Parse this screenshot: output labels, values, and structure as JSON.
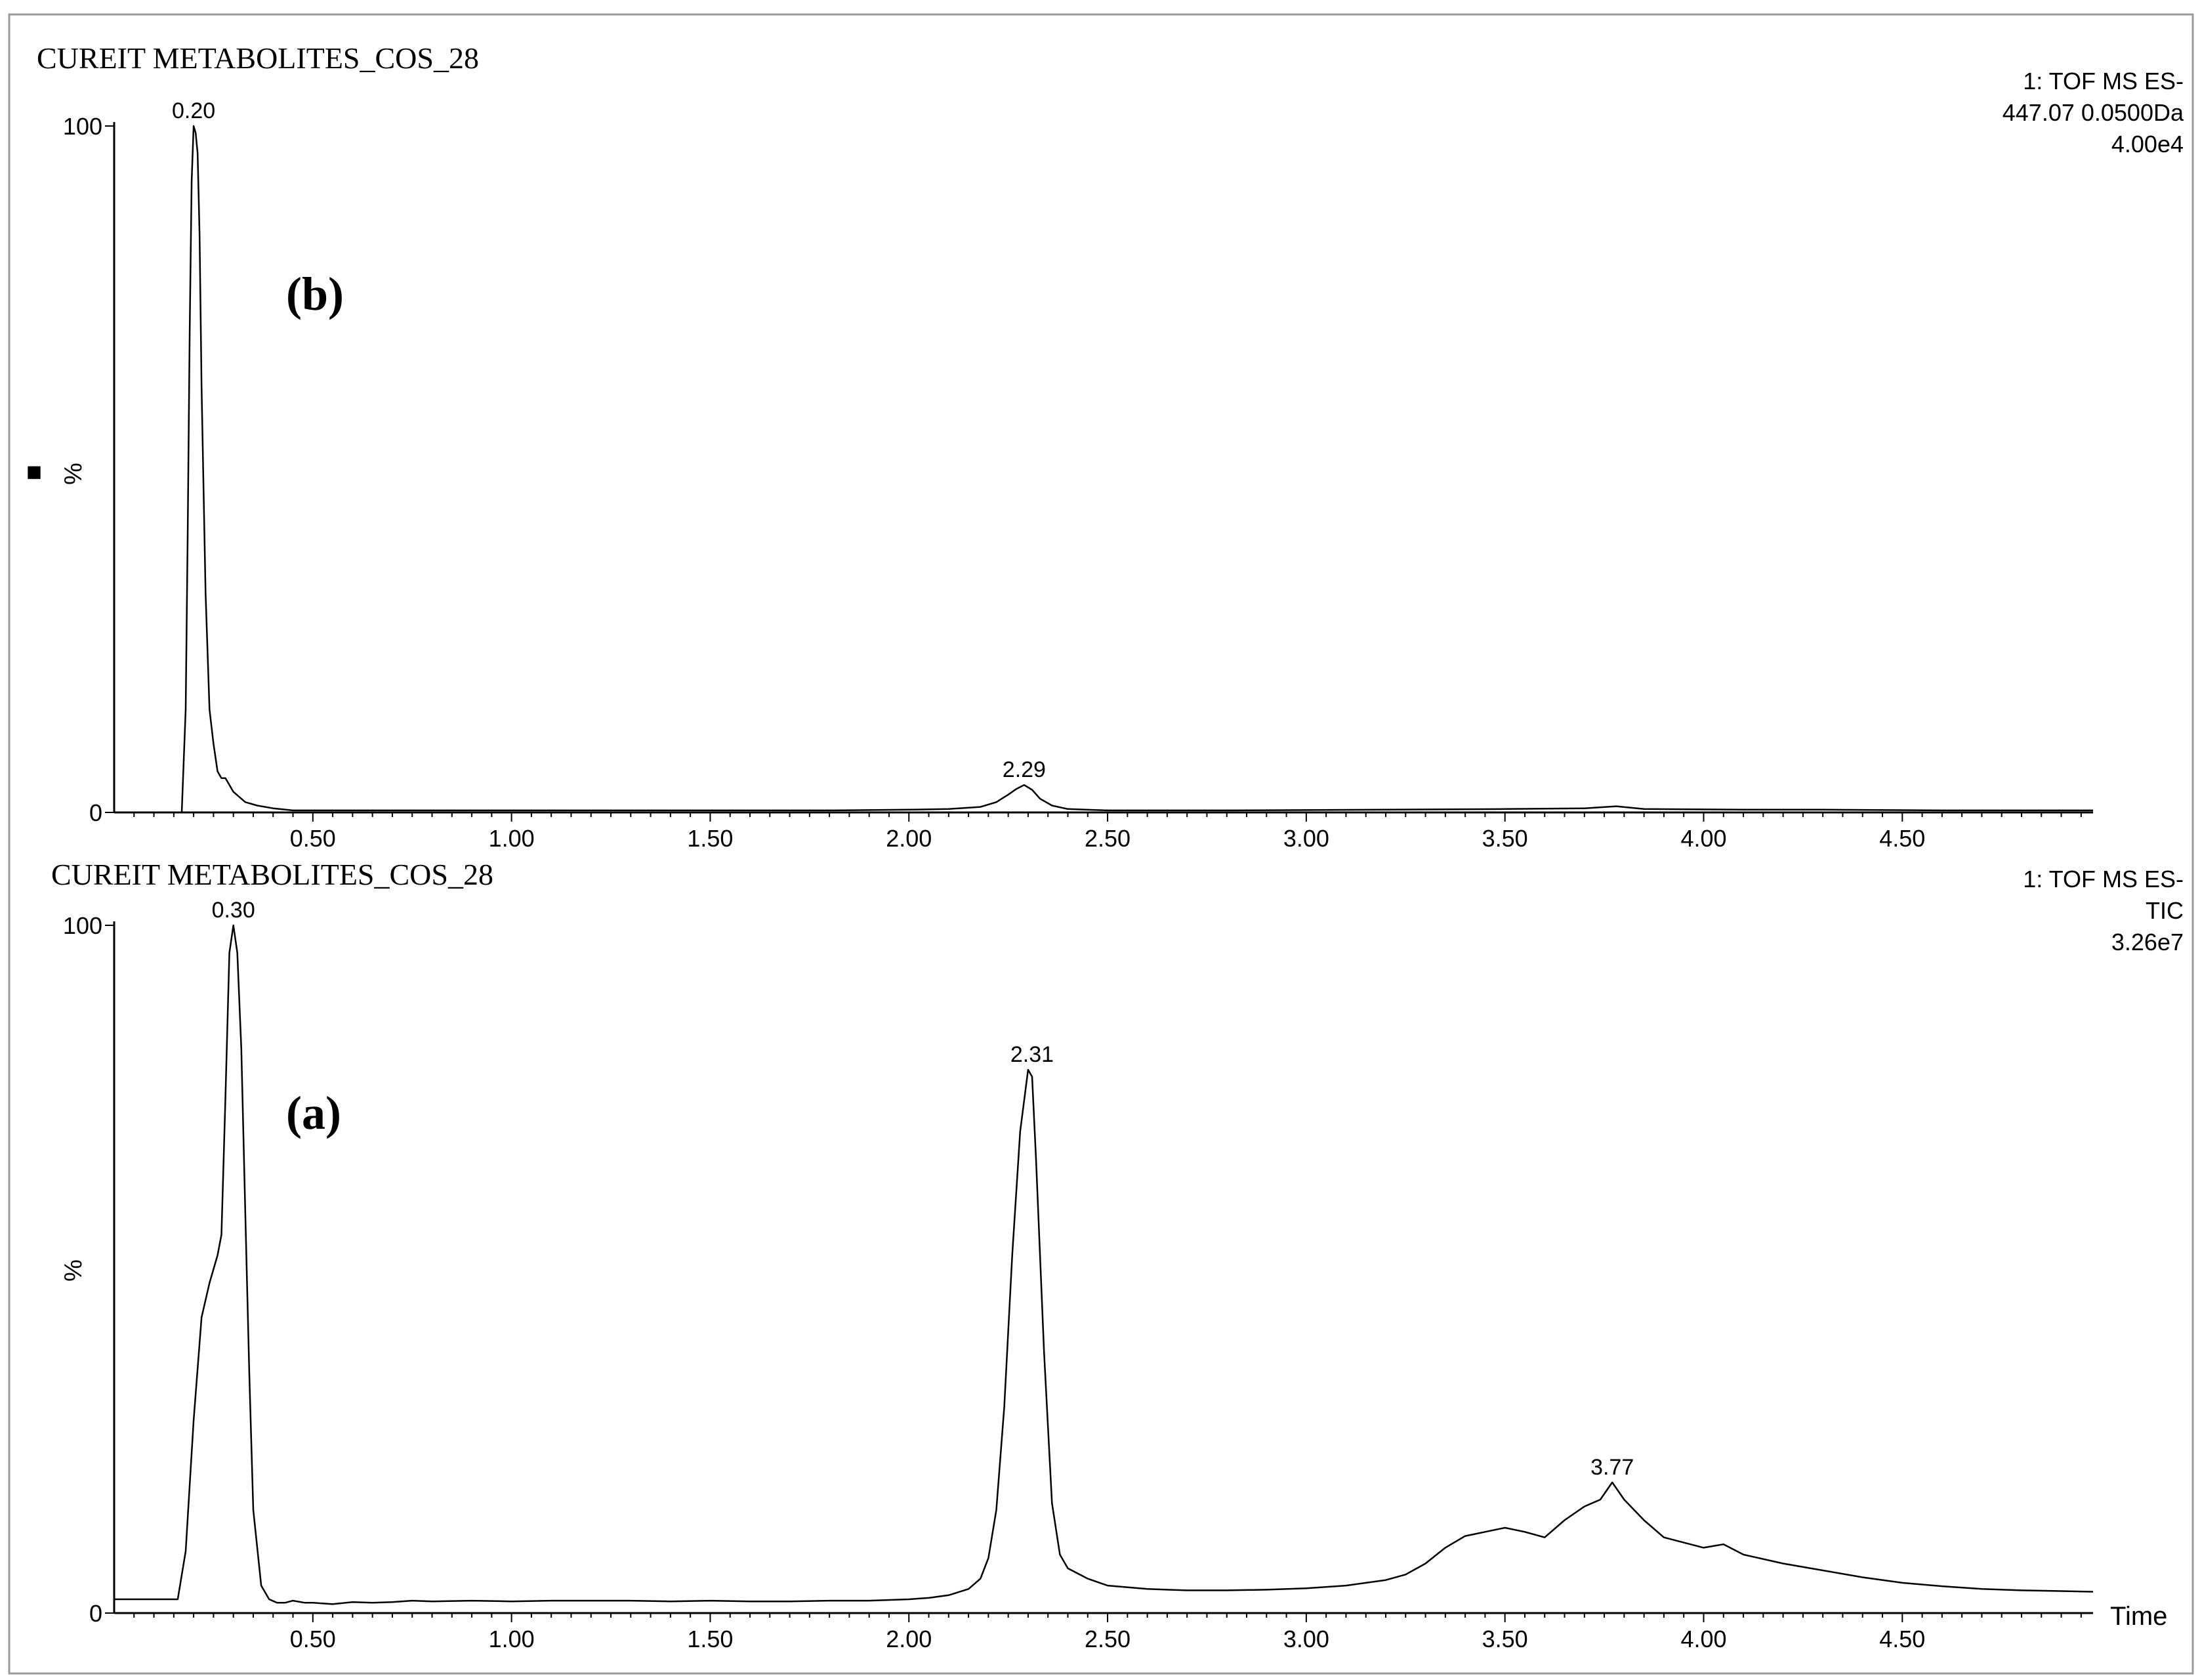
{
  "chart_data": [
    {
      "type": "line",
      "panel": "top",
      "title": "CUREIT METABOLITES_COS_28",
      "panel_label": "(b)",
      "info_lines": [
        "1: TOF MS ES-",
        "447.07 0.0500Da",
        "4.00e4"
      ],
      "ylabel": "%",
      "xlabel": "",
      "xlim": [
        0.0,
        4.98
      ],
      "ylim": [
        0,
        100
      ],
      "x_ticks": [
        "0.50",
        "1.00",
        "1.50",
        "2.00",
        "2.50",
        "3.00",
        "3.50",
        "4.00",
        "4.50"
      ],
      "y_ticks": [
        "0",
        "100"
      ],
      "peak_labels": [
        {
          "x": 0.2,
          "y": 100,
          "label": "0.20"
        },
        {
          "x": 2.29,
          "y": 4,
          "label": "2.29"
        }
      ],
      "series": [
        {
          "x": [
            0.0,
            0.17,
            0.18,
            0.185,
            0.19,
            0.195,
            0.2,
            0.205,
            0.21,
            0.215,
            0.22,
            0.23,
            0.24,
            0.25,
            0.26,
            0.27,
            0.28,
            0.3,
            0.33,
            0.36,
            0.4,
            0.45,
            0.6,
            0.8,
            1.0,
            1.2,
            1.4,
            1.6,
            1.8,
            2.0,
            2.1,
            2.18,
            2.22,
            2.25,
            2.27,
            2.29,
            2.31,
            2.33,
            2.36,
            2.4,
            2.5,
            2.8,
            3.2,
            3.5,
            3.7,
            3.78,
            3.85,
            4.1,
            4.3,
            4.6,
            4.98
          ],
          "y": [
            0,
            0,
            15,
            40,
            70,
            92,
            100,
            99,
            96,
            84,
            62,
            32,
            15,
            10,
            6,
            5,
            5,
            3,
            1.5,
            1.0,
            0.6,
            0.3,
            0.3,
            0.3,
            0.3,
            0.3,
            0.3,
            0.3,
            0.3,
            0.4,
            0.5,
            0.8,
            1.5,
            2.6,
            3.4,
            4.0,
            3.3,
            2.0,
            1.0,
            0.5,
            0.3,
            0.3,
            0.4,
            0.5,
            0.6,
            0.9,
            0.5,
            0.4,
            0.4,
            0.3,
            0.3
          ]
        }
      ]
    },
    {
      "type": "line",
      "panel": "bottom",
      "title": "CUREIT METABOLITES_COS_28",
      "panel_label": "(a)",
      "info_lines": [
        "1: TOF MS ES-",
        "TIC",
        "3.26e7"
      ],
      "ylabel": "%",
      "xlabel": "Time",
      "xlim": [
        0.0,
        4.98
      ],
      "ylim": [
        0,
        100
      ],
      "x_ticks": [
        "0.50",
        "1.00",
        "1.50",
        "2.00",
        "2.50",
        "3.00",
        "3.50",
        "4.00",
        "4.50"
      ],
      "y_ticks": [
        "0",
        "100"
      ],
      "peak_labels": [
        {
          "x": 0.3,
          "y": 100,
          "label": "0.30"
        },
        {
          "x": 2.31,
          "y": 79,
          "label": "2.31"
        },
        {
          "x": 3.77,
          "y": 19,
          "label": "3.77"
        }
      ],
      "series": [
        {
          "x": [
            0.0,
            0.1,
            0.14,
            0.16,
            0.18,
            0.2,
            0.22,
            0.24,
            0.26,
            0.27,
            0.28,
            0.29,
            0.3,
            0.31,
            0.32,
            0.33,
            0.34,
            0.35,
            0.37,
            0.39,
            0.41,
            0.43,
            0.45,
            0.48,
            0.5,
            0.55,
            0.6,
            0.65,
            0.7,
            0.75,
            0.8,
            0.9,
            1.0,
            1.1,
            1.2,
            1.3,
            1.4,
            1.5,
            1.6,
            1.7,
            1.8,
            1.9,
            2.0,
            2.05,
            2.1,
            2.15,
            2.18,
            2.2,
            2.22,
            2.24,
            2.26,
            2.28,
            2.3,
            2.31,
            2.32,
            2.34,
            2.36,
            2.38,
            2.4,
            2.45,
            2.5,
            2.6,
            2.7,
            2.8,
            2.9,
            3.0,
            3.1,
            3.2,
            3.25,
            3.3,
            3.35,
            3.4,
            3.45,
            3.5,
            3.55,
            3.6,
            3.65,
            3.7,
            3.74,
            3.77,
            3.8,
            3.85,
            3.9,
            4.0,
            4.05,
            4.1,
            4.2,
            4.3,
            4.4,
            4.5,
            4.6,
            4.7,
            4.8,
            4.9,
            4.98
          ],
          "y": [
            2,
            2,
            2,
            2,
            9,
            28,
            43,
            48,
            52,
            55,
            75,
            96,
            100,
            96,
            82,
            58,
            35,
            15,
            4,
            2,
            1.5,
            1.5,
            1.8,
            1.5,
            1.5,
            1.3,
            1.6,
            1.5,
            1.6,
            1.8,
            1.7,
            1.8,
            1.7,
            1.8,
            1.8,
            1.8,
            1.7,
            1.8,
            1.7,
            1.7,
            1.8,
            1.8,
            2,
            2.2,
            2.6,
            3.5,
            5,
            8,
            15,
            30,
            52,
            70,
            79,
            78,
            66,
            38,
            16,
            8.5,
            6.5,
            5,
            4,
            3.5,
            3.3,
            3.3,
            3.4,
            3.6,
            4,
            4.8,
            5.6,
            7.2,
            9.5,
            11.2,
            11.8,
            12.4,
            11.8,
            11.0,
            13.5,
            15.5,
            16.5,
            19,
            16.5,
            13.5,
            11,
            9.5,
            10,
            8.5,
            7.2,
            6.2,
            5.2,
            4.4,
            3.9,
            3.5,
            3.3,
            3.2,
            3.1
          ]
        }
      ]
    }
  ],
  "legend_marker": "■"
}
